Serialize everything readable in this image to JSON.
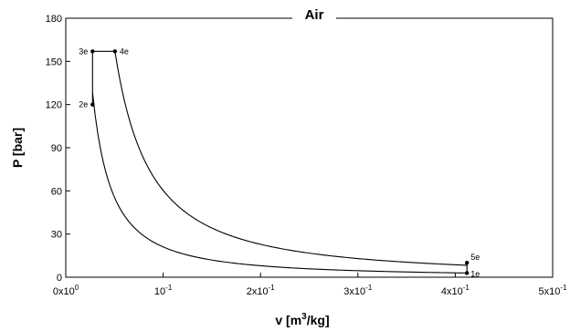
{
  "chart_data": {
    "type": "line",
    "title": "Air",
    "xlabel": "v [m3/kg]",
    "ylabel": "P [bar]",
    "xlim": [
      0,
      0.5
    ],
    "ylim": [
      0,
      180
    ],
    "grid": false,
    "x_ticks": [
      {
        "value": 0,
        "label": "0x10",
        "exp": "0"
      },
      {
        "value": 0.1,
        "label": "10",
        "exp": "-1"
      },
      {
        "value": 0.2,
        "label": "2x10",
        "exp": "-1"
      },
      {
        "value": 0.3,
        "label": "3x10",
        "exp": "-1"
      },
      {
        "value": 0.4,
        "label": "4x10",
        "exp": "-1"
      },
      {
        "value": 0.5,
        "label": "5x10",
        "exp": "-1"
      }
    ],
    "y_ticks": [
      0,
      30,
      60,
      90,
      120,
      150,
      180
    ],
    "states": [
      {
        "name": "1e",
        "v": 0.412,
        "P": 2.9
      },
      {
        "name": "2e",
        "v": 0.0275,
        "P": 120
      },
      {
        "name": "3e",
        "v": 0.0275,
        "P": 157
      },
      {
        "name": "4e",
        "v": 0.0505,
        "P": 157
      },
      {
        "name": "5e",
        "v": 0.412,
        "P": 10
      }
    ],
    "processes": [
      {
        "from": "1e",
        "to": "2e",
        "kind": "power",
        "exponent": 1.4
      },
      {
        "from": "2e",
        "to": "3e",
        "kind": "constant-volume"
      },
      {
        "from": "3e",
        "to": "4e",
        "kind": "constant-pressure"
      },
      {
        "from": "4e",
        "to": "5e",
        "kind": "power",
        "exponent": 1.4
      },
      {
        "from": "5e",
        "to": "1e",
        "kind": "constant-volume"
      }
    ]
  }
}
